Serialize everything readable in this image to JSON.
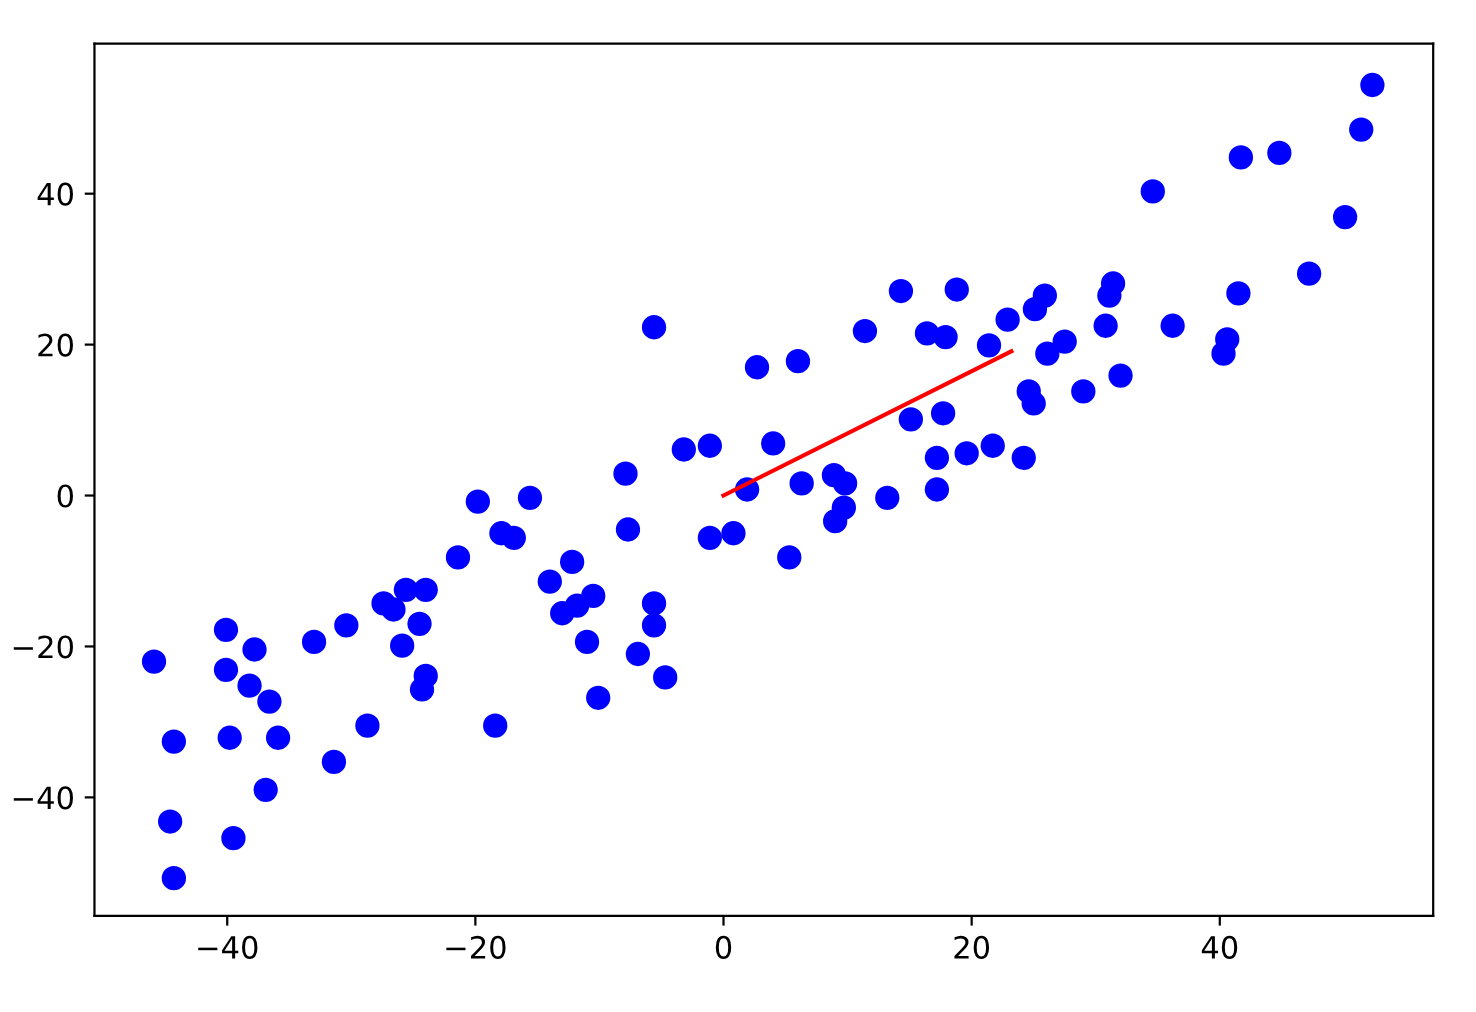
{
  "chart_data": {
    "type": "scatter",
    "marker": "circle",
    "grid": false,
    "xlim": [
      -50.7,
      57.2
    ],
    "ylim": [
      -55.7,
      59.9
    ],
    "xticks": [
      {
        "value": -40,
        "label": "−40"
      },
      {
        "value": -20,
        "label": "−20"
      },
      0,
      20,
      40
    ],
    "yticks": [
      {
        "value": -40,
        "label": "−40"
      },
      {
        "value": -20,
        "label": "−20"
      },
      0,
      20,
      40
    ],
    "series": [
      {
        "color": "#0000ff",
        "x": [
          -45.9,
          -44.3,
          -44.6,
          -44.3,
          -40.1,
          -40.1,
          -39.8,
          -39.5,
          -37.8,
          -38.2,
          -36.6,
          -35.9,
          -36.9,
          -33,
          -31.4,
          -30.4,
          -28.7,
          -25.6,
          -24,
          -27.4,
          -26.6,
          -24.5,
          -25.9,
          -24,
          -24.3,
          -21.4,
          -19.8,
          -18.4,
          -17.9,
          -16.9,
          -15.6,
          -14,
          -12.2,
          -13,
          -11.8,
          -10.5,
          -11,
          -10.1,
          -7.9,
          -7.7,
          -5.6,
          -5.6,
          -6.9,
          -4.7,
          -5.6,
          -3.2,
          -1.1,
          -1.1,
          0.8,
          1.9,
          2.7,
          4,
          6,
          5.3,
          6.3,
          8.9,
          9.8,
          9.7,
          9,
          13.2,
          11.4,
          14.3,
          15.1,
          16.4,
          17.9,
          17.7,
          17.2,
          17.2,
          18.8,
          19.6,
          21.7,
          24.2,
          21.4,
          22.9,
          25.1,
          25.9,
          26.1,
          27.5,
          24.6,
          25,
          29,
          32,
          30.8,
          31.1,
          31.4,
          34.6,
          36.2,
          40.3,
          40.6,
          41.5,
          41.7,
          44.8,
          47.2,
          50.1,
          51.4,
          52.3
        ],
        "values": [
          -22,
          -32.6,
          -43.2,
          -50.7,
          -17.8,
          -23.1,
          -32.1,
          -45.4,
          -20.4,
          -25.2,
          -27.3,
          -32.1,
          -39,
          -19.4,
          -35.3,
          -17.2,
          -30.5,
          -12.5,
          -12.5,
          -14.3,
          -15.1,
          -17,
          -19.9,
          -23.9,
          -25.7,
          -8.2,
          -0.8,
          -30.5,
          -5,
          -5.6,
          -0.3,
          -11.4,
          -8.8,
          -15.6,
          -14.6,
          -13.3,
          -19.4,
          -26.8,
          2.9,
          -4.5,
          -14.3,
          -17.2,
          -21,
          -24.1,
          22.3,
          6.1,
          6.6,
          -5.6,
          -5,
          0.8,
          17,
          6.9,
          17.8,
          -8.2,
          1.6,
          2.7,
          1.6,
          -1.6,
          -3.4,
          -0.3,
          21.8,
          27.1,
          10.1,
          21.5,
          21,
          10.9,
          5,
          0.8,
          27.3,
          5.6,
          6.6,
          5,
          19.9,
          23.3,
          24.7,
          26.5,
          18.8,
          20.4,
          13.8,
          12.2,
          13.8,
          15.9,
          22.5,
          26.5,
          28.1,
          40.3,
          22.5,
          18.8,
          20.7,
          26.8,
          44.8,
          45.4,
          29.4,
          36.9,
          48.5,
          54.4
        ]
      },
      {
        "type": "line",
        "marker": "none",
        "color": "#ff0000",
        "x": [
          0,
          23.2
        ],
        "values": [
          0,
          19.1
        ]
      }
    ]
  }
}
